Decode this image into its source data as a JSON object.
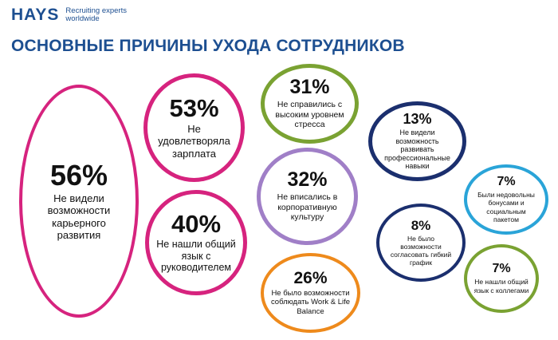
{
  "brand": {
    "logo_text": "HAYS",
    "tagline_line1": "Recruiting experts",
    "tagline_line2": "worldwide"
  },
  "title": "ОСНОВНЫЕ ПРИЧИНЫ УХОДА СОТРУДНИКОВ",
  "colors": {
    "brand_blue": "#1d4f91",
    "magenta": "#d6237e",
    "green": "#7aa232",
    "lavender": "#a07fc7",
    "orange": "#ee8a1c",
    "navy": "#1b2f6e",
    "light_blue": "#2aa4d8"
  },
  "chart_data": {
    "type": "bubble",
    "unit": "%",
    "items": [
      {
        "id": "b1",
        "value": 56,
        "label": "56%",
        "description": "Не видели возможности карьерного развития",
        "color": "#d6237e"
      },
      {
        "id": "b2",
        "value": 53,
        "label": "53%",
        "description": "Не удовлетворяла зарплата",
        "color": "#d6237e"
      },
      {
        "id": "b3",
        "value": 40,
        "label": "40%",
        "description": "Не нашли общий язык с руководителем",
        "color": "#d6237e"
      },
      {
        "id": "b4",
        "value": 31,
        "label": "31%",
        "description": "Не справились с высоким уровнем стресса",
        "color": "#7aa232"
      },
      {
        "id": "b5",
        "value": 32,
        "label": "32%",
        "description": "Не вписались в корпоративную культуру",
        "color": "#a07fc7"
      },
      {
        "id": "b6",
        "value": 26,
        "label": "26%",
        "description": "Не было возможности соблюдать Work & Life Balance",
        "color": "#ee8a1c"
      },
      {
        "id": "b7",
        "value": 13,
        "label": "13%",
        "description": "Не видели возможность развивать профессиональные навыки",
        "color": "#1b2f6e"
      },
      {
        "id": "b8",
        "value": 8,
        "label": "8%",
        "description": "Не было возможности согласовать гибкий график",
        "color": "#1b2f6e"
      },
      {
        "id": "b9",
        "value": 7,
        "label": "7%",
        "description": "Были недовольны бонусами и социальным пакетом",
        "color": "#2aa4d8"
      },
      {
        "id": "b10",
        "value": 7,
        "label": "7%",
        "description": "Не нашли общий язык с коллегами",
        "color": "#7aa232"
      }
    ]
  }
}
